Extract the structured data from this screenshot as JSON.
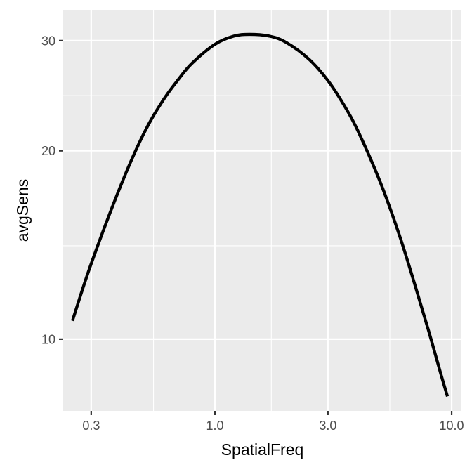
{
  "chart_data": {
    "type": "line",
    "xlabel": "SpatialFreq",
    "ylabel": "avgSens",
    "x_scale": "log10",
    "y_scale": "log10",
    "xlim": [
      0.2285,
      11.0
    ],
    "ylim": [
      7.68,
      33.6
    ],
    "x_ticks": [
      0.3,
      1.0,
      3.0,
      10.0
    ],
    "x_tick_labels": [
      "0.3",
      "1.0",
      "3.0",
      "10.0"
    ],
    "x_minor_ticks": [
      0.55,
      1.73,
      5.48
    ],
    "y_ticks": [
      10,
      20,
      30
    ],
    "y_tick_labels": [
      "10",
      "20",
      "30"
    ],
    "y_minor_ticks": [
      14.1,
      24.5
    ],
    "grid": true,
    "panel_background": "#ebebeb",
    "grid_color": "#ffffff",
    "series": [
      {
        "color": "#000000",
        "x": [
          0.25,
          0.3,
          0.4,
          0.5,
          0.6,
          0.7,
          0.8,
          1.0,
          1.2,
          1.4,
          1.7,
          2.0,
          2.5,
          3.0,
          3.5,
          4.0,
          5.0,
          6.0,
          7.0,
          8.0,
          9.0,
          9.6
        ],
        "y": [
          10.7,
          13.2,
          17.6,
          21.3,
          24.0,
          26.0,
          27.6,
          29.6,
          30.5,
          30.7,
          30.5,
          29.8,
          28.0,
          25.9,
          23.7,
          21.6,
          17.8,
          14.7,
          12.2,
          10.3,
          8.8,
          8.1
        ]
      }
    ]
  }
}
